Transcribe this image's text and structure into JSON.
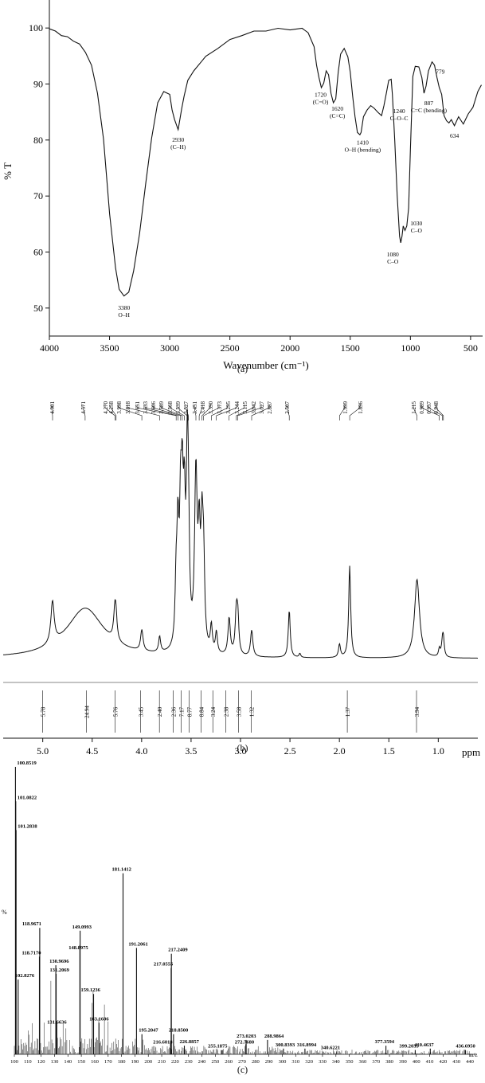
{
  "panels": {
    "a": {
      "caption": "(a)",
      "chart_data": {
        "type": "line",
        "ylabel": "% T",
        "xlabel": "Wavenumber (cm⁻¹)",
        "xlim": [
          4000,
          400
        ],
        "ylim": [
          45,
          105
        ],
        "x_ticks": [
          "4000",
          "3500",
          "3000",
          "2500",
          "2000",
          "1500",
          "1000",
          "500"
        ],
        "y_ticks": [
          "50",
          "60",
          "70",
          "80",
          "90",
          "100"
        ],
        "series": [
          {
            "x": [
              4000,
              3950,
              3900,
              3850,
              3800,
              3750,
              3700,
              3650,
              3600,
              3550,
              3500,
              3450,
              3420,
              3380,
              3340,
              3300,
              3250,
              3200,
              3150,
              3100,
              3050,
              3000,
              2980,
              2960,
              2930,
              2900,
              2880,
              2850,
              2800,
              2700,
              2600,
              2500,
              2400,
              2300,
              2200,
              2100,
              2000,
              1900,
              1850,
              1800,
              1780,
              1760,
              1740,
              1720,
              1700,
              1680,
              1660,
              1640,
              1620,
              1600,
              1580,
              1550,
              1520,
              1500,
              1480,
              1460,
              1440,
              1420,
              1410,
              1390,
              1360,
              1330,
              1300,
              1270,
              1240,
              1220,
              1200,
              1180,
              1160,
              1150,
              1130,
              1110,
              1090,
              1080,
              1070,
              1060,
              1045,
              1030,
              1015,
              1000,
              980,
              960,
              930,
              905,
              887,
              870,
              850,
              820,
              800,
              779,
              760,
              740,
              720,
              700,
              680,
              660,
              634,
              600,
              560,
              520,
              480,
              440,
              410
            ],
            "y": [
              100,
              99.3,
              98.8,
              98.3,
              97.8,
              97,
              95.8,
              93.2,
              88.5,
              80,
              67,
              57,
              53.5,
              52,
              53,
              56.5,
              63.5,
              72,
              80.5,
              86.5,
              88.8,
              88,
              85.5,
              83.5,
              82,
              85.5,
              88,
              90.5,
              92.5,
              94.8,
              96.5,
              97.8,
              98.8,
              99.3,
              99.6,
              99.8,
              99.8,
              99.8,
              99.3,
              96.5,
              93.5,
              91,
              89.5,
              90,
              92.5,
              91.5,
              88.5,
              86.5,
              87.5,
              92,
              95.5,
              96.2,
              95,
              92,
              88,
              84,
              81.5,
              80.8,
              81.5,
              84,
              85.5,
              86,
              85.8,
              84.8,
              84.5,
              86,
              88.5,
              90.5,
              91,
              88,
              80,
              70,
              63,
              61.5,
              63,
              64.5,
              64,
              64.5,
              68,
              78,
              91.5,
              93,
              93.2,
              91,
              88.5,
              89.5,
              92.5,
              93.8,
              93.5,
              91,
              89.5,
              88,
              84.5,
              83.3,
              83.2,
              83.5,
              82.7,
              84,
              83,
              84.5,
              86,
              88.5,
              90
            ]
          }
        ],
        "annotations": [
          {
            "wn": 3380,
            "lines": [
              "3380",
              "O–H"
            ]
          },
          {
            "wn": 2930,
            "lines": [
              "2930",
              "(C–H)"
            ]
          },
          {
            "wn": 1720,
            "lines": [
              "1720",
              "(C=O)"
            ]
          },
          {
            "wn": 1620,
            "lines": [
              "1620",
              "(C=C)"
            ]
          },
          {
            "wn": 1410,
            "lines": [
              "1410",
              "O–H (bending)"
            ]
          },
          {
            "wn": 1240,
            "lines": [
              "1240",
              "C–O–C"
            ]
          },
          {
            "wn": 1080,
            "lines": [
              "1080",
              "C–O"
            ]
          },
          {
            "wn": 1030,
            "lines": [
              "1030",
              "C–O"
            ]
          },
          {
            "wn": 887,
            "lines": [
              "887",
              "C=C (bending)"
            ]
          },
          {
            "wn": 779,
            "lines": [
              "779"
            ]
          },
          {
            "wn": 634,
            "lines": [
              "634"
            ]
          }
        ]
      }
    },
    "b": {
      "caption": "(b)",
      "chart_data": {
        "type": "line",
        "xlabel": "ppm",
        "xlim": [
          5.4,
          0.6
        ],
        "x_ticks": [
          "5.0",
          "4.5",
          "4.0",
          "3.5",
          "3.0",
          "2.5",
          "2.0",
          "1.5",
          "1.0"
        ],
        "peak_labels": [
          "4.901",
          "4.571",
          "4.270",
          "4.258",
          "3.998",
          "3.818",
          "3.651",
          "3.633",
          "3.606",
          "3.589",
          "3.568",
          "3.539",
          "3.527",
          "3.451",
          "3.418",
          "3.390",
          "3.373",
          "3.295",
          "3.244",
          "3.115",
          "3.042",
          "3.027",
          "2.887",
          "2.507",
          "1.999",
          "1.896",
          "1.215",
          "0.989",
          "0.957",
          "0.948"
        ],
        "peaks": [
          {
            "ppm": 4.901,
            "h": 0.16,
            "w": 0.02
          },
          {
            "ppm": 4.57,
            "h": 0.19,
            "w": 0.23
          },
          {
            "ppm": 4.27,
            "h": 0.12,
            "w": 0.015
          },
          {
            "ppm": 4.258,
            "h": 0.06,
            "w": 0.012
          },
          {
            "ppm": 3.998,
            "h": 0.08,
            "w": 0.015
          },
          {
            "ppm": 3.818,
            "h": 0.06,
            "w": 0.012
          },
          {
            "ppm": 3.651,
            "h": 0.22,
            "w": 0.012
          },
          {
            "ppm": 3.633,
            "h": 0.4,
            "w": 0.012
          },
          {
            "ppm": 3.606,
            "h": 0.45,
            "w": 0.012
          },
          {
            "ppm": 3.589,
            "h": 0.48,
            "w": 0.012
          },
          {
            "ppm": 3.568,
            "h": 0.45,
            "w": 0.012
          },
          {
            "ppm": 3.539,
            "h": 0.6,
            "w": 0.012
          },
          {
            "ppm": 3.527,
            "h": 0.38,
            "w": 0.012
          },
          {
            "ppm": 3.451,
            "h": 0.66,
            "w": 0.016
          },
          {
            "ppm": 3.418,
            "h": 0.36,
            "w": 0.012
          },
          {
            "ppm": 3.39,
            "h": 0.42,
            "w": 0.014
          },
          {
            "ppm": 3.373,
            "h": 0.28,
            "w": 0.012
          },
          {
            "ppm": 3.295,
            "h": 0.1,
            "w": 0.012
          },
          {
            "ppm": 3.244,
            "h": 0.08,
            "w": 0.012
          },
          {
            "ppm": 3.115,
            "h": 0.14,
            "w": 0.014
          },
          {
            "ppm": 3.042,
            "h": 0.16,
            "w": 0.014
          },
          {
            "ppm": 3.027,
            "h": 0.12,
            "w": 0.012
          },
          {
            "ppm": 2.887,
            "h": 0.1,
            "w": 0.014
          },
          {
            "ppm": 2.507,
            "h": 0.18,
            "w": 0.012
          },
          {
            "ppm": 2.4,
            "h": 0.015,
            "w": 0.01
          },
          {
            "ppm": 1.999,
            "h": 0.05,
            "w": 0.012
          },
          {
            "ppm": 1.896,
            "h": 0.35,
            "w": 0.012
          },
          {
            "ppm": 1.215,
            "h": 0.3,
            "w": 0.03
          },
          {
            "ppm": 0.989,
            "h": 0.03,
            "w": 0.01
          },
          {
            "ppm": 0.957,
            "h": 0.06,
            "w": 0.012
          },
          {
            "ppm": 0.948,
            "h": 0.05,
            "w": 0.01
          }
        ],
        "integrals": [
          {
            "value": "5.78",
            "ppm": 5.0
          },
          {
            "value": "24.94",
            "ppm": 4.56
          },
          {
            "value": "5.76",
            "ppm": 4.27
          },
          {
            "value": "3.45",
            "ppm": 4.01
          },
          {
            "value": "2.40",
            "ppm": 3.82
          },
          {
            "value": "2.36",
            "ppm": 3.68
          },
          {
            "value": "7.17",
            "ppm": 3.6
          },
          {
            "value": "8.77",
            "ppm": 3.52
          },
          {
            "value": "8.84",
            "ppm": 3.4
          },
          {
            "value": "3.24",
            "ppm": 3.28
          },
          {
            "value": "2.38",
            "ppm": 3.15
          },
          {
            "value": "3.58",
            "ppm": 3.02
          },
          {
            "value": "1.32",
            "ppm": 2.89
          },
          {
            "value": "1.37",
            "ppm": 1.92
          },
          {
            "value": "3.94",
            "ppm": 1.22
          }
        ]
      }
    },
    "c": {
      "caption": "(c)",
      "chart_data": {
        "type": "bar",
        "ylabel": "%",
        "xlabel": "m/z",
        "xlim": [
          100,
          440
        ],
        "ylim": [
          0,
          100
        ],
        "x_ticks": [
          "100",
          "110",
          "120",
          "130",
          "140",
          "150",
          "160",
          "170",
          "180",
          "190",
          "200",
          "210",
          "220",
          "230",
          "240",
          "250",
          "260",
          "270",
          "280",
          "290",
          "300",
          "310",
          "320",
          "330",
          "340",
          "350",
          "360",
          "370",
          "380",
          "390",
          "400",
          "410",
          "420",
          "430",
          "440"
        ],
        "labeled_peaks": [
          {
            "mz": 100.8519,
            "label": "100.8519",
            "y": 100
          },
          {
            "mz": 101.0822,
            "label": "101.0822",
            "y": 88
          },
          {
            "mz": 101.2838,
            "label": "101.2838",
            "y": 78
          },
          {
            "mz": 102.8276,
            "label": "102.8276",
            "y": 26
          },
          {
            "mz": 118.717,
            "label": "118.7170",
            "y": 34
          },
          {
            "mz": 118.9671,
            "label": "118.9671",
            "y": 44
          },
          {
            "mz": 130.9696,
            "label": "130.9696",
            "y": 31
          },
          {
            "mz": 131.2069,
            "label": "131.2069",
            "y": 28
          },
          {
            "mz": 131.6636,
            "label": "131.6636",
            "y": 11
          },
          {
            "mz": 148.8975,
            "label": "148.8975",
            "y": 38
          },
          {
            "mz": 149.0993,
            "label": "149.0993",
            "y": 43
          },
          {
            "mz": 159.1236,
            "label": "159.1236",
            "y": 21
          },
          {
            "mz": 163.1606,
            "label": "163.1606",
            "y": 11
          },
          {
            "mz": 181.1412,
            "label": "181.1412",
            "y": 63
          },
          {
            "mz": 191.2061,
            "label": "191.2061",
            "y": 37
          },
          {
            "mz": 195.2047,
            "label": "195.2047",
            "y": 7
          },
          {
            "mz": 216.6018,
            "label": "216.6018",
            "y": 4
          },
          {
            "mz": 217.0555,
            "label": "217.0555",
            "y": 30
          },
          {
            "mz": 217.2409,
            "label": "217.2409",
            "y": 35
          },
          {
            "mz": 218.85,
            "label": "218.8500",
            "y": 7
          },
          {
            "mz": 226.8857,
            "label": "226.8857",
            "y": 3
          },
          {
            "mz": 255.1875,
            "label": "255.1875",
            "y": 1.5
          },
          {
            "mz": 272.768,
            "label": "272.7680",
            "y": 3.5
          },
          {
            "mz": 273.0203,
            "label": "273.0203",
            "y": 5
          },
          {
            "mz": 288.9864,
            "label": "288.9864",
            "y": 5
          },
          {
            "mz": 300.8393,
            "label": "300.8393",
            "y": 2
          },
          {
            "mz": 316.8994,
            "label": "316.8994",
            "y": 2
          },
          {
            "mz": 340.6221,
            "label": "340.6221",
            "y": 1
          },
          {
            "mz": 377.3594,
            "label": "377.3594",
            "y": 3
          },
          {
            "mz": 399.2035,
            "label": "399.2035",
            "y": 1.5
          },
          {
            "mz": 410.4637,
            "label": "410.4637",
            "y": 2
          },
          {
            "mz": 436.695,
            "label": "436.6950",
            "y": 1.5
          }
        ]
      }
    }
  }
}
